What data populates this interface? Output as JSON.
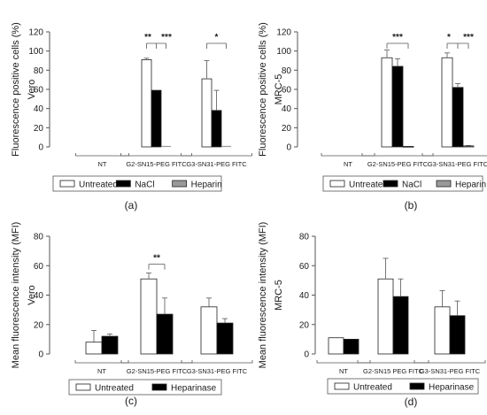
{
  "colors": {
    "untreated": "#ffffff",
    "nacl": "#000000",
    "heparin": "#9a9a9a",
    "heparinase": "#000000",
    "axis": "#555555",
    "stroke": "#222222"
  },
  "chart_data": [
    {
      "panel_label": "(a)",
      "type": "bar",
      "ylabel_lines": [
        "Fluorescence positive cells (%)",
        "Vero"
      ],
      "ylim": [
        0,
        120
      ],
      "yticks": [
        0,
        20,
        40,
        60,
        80,
        100,
        120
      ],
      "grid": false,
      "categories": [
        "NT",
        "G2-SN15-PEG FITC",
        "G3-SN31-PEG FITC"
      ],
      "series": [
        {
          "name": "Untreated",
          "color_key": "untreated",
          "values": [
            0,
            91,
            71
          ],
          "errors": [
            0,
            1.5,
            19
          ]
        },
        {
          "name": "NaCl",
          "color_key": "nacl",
          "values": [
            0,
            59,
            38
          ],
          "errors": [
            0,
            0,
            21
          ]
        },
        {
          "name": "Heparin",
          "color_key": "heparin",
          "values": [
            0,
            0,
            0
          ],
          "errors": [
            0,
            0,
            0
          ]
        }
      ],
      "legend": [
        "Untreated",
        "NaCl",
        "Heparin"
      ],
      "brackets": [
        {
          "group": 1,
          "levels": [
            0,
            1,
            2
          ],
          "y": 108,
          "marks": [
            "**",
            "***"
          ]
        },
        {
          "group": 2,
          "levels": [
            0,
            2
          ],
          "y": 108,
          "marks": [
            "*"
          ]
        }
      ]
    },
    {
      "panel_label": "(b)",
      "type": "bar",
      "ylabel_lines": [
        "Fluorescence positive cells (%)",
        "MRC-5"
      ],
      "ylim": [
        0,
        120
      ],
      "yticks": [
        0,
        20,
        40,
        60,
        80,
        100,
        120
      ],
      "grid": false,
      "categories": [
        "NT",
        "G2-SN15-PEG FITC",
        "G3-SN31-PEG FITC"
      ],
      "series": [
        {
          "name": "Untreated",
          "color_key": "untreated",
          "values": [
            0,
            93,
            93
          ],
          "errors": [
            0,
            8,
            5
          ]
        },
        {
          "name": "NaCl",
          "color_key": "nacl",
          "values": [
            0,
            84,
            62
          ],
          "errors": [
            0,
            8,
            4
          ]
        },
        {
          "name": "Heparin",
          "color_key": "heparin",
          "values": [
            0,
            0.5,
            1
          ],
          "errors": [
            0,
            0,
            0.5
          ]
        }
      ],
      "legend": [
        "Untreated",
        "NaCl",
        "Heparin"
      ],
      "brackets": [
        {
          "group": 1,
          "levels": [
            0,
            2
          ],
          "y": 108,
          "marks": [
            "***"
          ]
        },
        {
          "group": 2,
          "levels": [
            0,
            1,
            2
          ],
          "y": 108,
          "marks": [
            "*",
            "***"
          ]
        }
      ]
    },
    {
      "panel_label": "(c)",
      "type": "bar",
      "ylabel_lines": [
        "Mean fluorescence intensity (MFI)",
        "Vero"
      ],
      "ylim": [
        0,
        80
      ],
      "yticks": [
        0,
        20,
        40,
        60,
        80
      ],
      "grid": false,
      "categories": [
        "NT",
        "G2-SN15-PEG FITC",
        "G3-SN31-PEG FITC"
      ],
      "series": [
        {
          "name": "Untreated",
          "color_key": "untreated",
          "values": [
            8,
            51,
            32
          ],
          "errors": [
            8,
            4,
            6
          ]
        },
        {
          "name": "Heparinase",
          "color_key": "heparinase",
          "values": [
            12,
            27,
            21
          ],
          "errors": [
            1.5,
            11,
            3
          ]
        }
      ],
      "legend": [
        "Untreated",
        "Heparinase"
      ],
      "brackets": [
        {
          "group": 1,
          "levels": [
            0,
            1
          ],
          "y": 61,
          "marks": [
            "**"
          ]
        }
      ]
    },
    {
      "panel_label": "(d)",
      "type": "bar",
      "ylabel_lines": [
        "Mean fluorescence intensity (MFI)",
        "MRC-5"
      ],
      "ylim": [
        0,
        80
      ],
      "yticks": [
        0,
        20,
        40,
        60,
        80
      ],
      "grid": false,
      "categories": [
        "NT",
        "G2-SN15 PEG FITC",
        "G3-SN31-PEG FITC"
      ],
      "series": [
        {
          "name": "Untreated",
          "color_key": "untreated",
          "values": [
            11,
            51,
            32
          ],
          "errors": [
            0,
            14,
            11
          ]
        },
        {
          "name": "Heparinase",
          "color_key": "heparinase",
          "values": [
            10,
            39,
            26
          ],
          "errors": [
            0,
            12,
            10
          ]
        }
      ],
      "legend": [
        "Untreated",
        "Heparinase"
      ],
      "brackets": []
    }
  ]
}
